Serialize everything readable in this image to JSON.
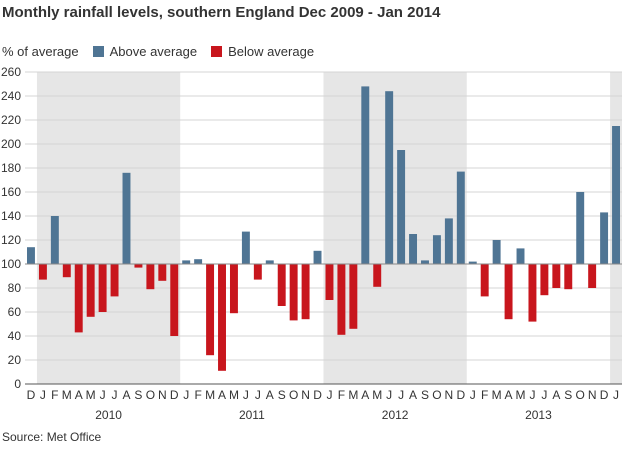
{
  "title": "Monthly rainfall levels, southern England Dec 2009 - Jan 2014",
  "legend": {
    "unit_label": "% of average",
    "above_label": "Above average",
    "below_label": "Below average"
  },
  "source": "Source: Met Office",
  "colors": {
    "above": "#4f7594",
    "below": "#c8161d",
    "band": "#e6e6e6",
    "grid": "#d4d4d4"
  },
  "chart_data": {
    "type": "bar",
    "ylabel": "% of average",
    "ylim": [
      0,
      260
    ],
    "yticks": [
      0,
      20,
      40,
      60,
      80,
      100,
      120,
      140,
      160,
      180,
      200,
      220,
      240,
      260
    ],
    "baseline": 100,
    "categories": [
      "D",
      "J",
      "F",
      "M",
      "A",
      "M",
      "J",
      "J",
      "A",
      "S",
      "O",
      "N",
      "D",
      "J",
      "F",
      "M",
      "A",
      "M",
      "J",
      "J",
      "A",
      "S",
      "O",
      "N",
      "D",
      "J",
      "F",
      "M",
      "A",
      "M",
      "J",
      "J",
      "A",
      "S",
      "O",
      "N",
      "D",
      "J",
      "F",
      "M",
      "A",
      "M",
      "J",
      "J",
      "A",
      "S",
      "O",
      "N",
      "D",
      "J"
    ],
    "values": [
      114,
      87,
      140,
      89,
      43,
      56,
      60,
      73,
      176,
      97,
      79,
      86,
      40,
      103,
      104,
      24,
      11,
      59,
      127,
      87,
      103,
      65,
      53,
      54,
      111,
      70,
      41,
      46,
      248,
      81,
      244,
      195,
      125,
      103,
      124,
      138,
      177,
      102,
      73,
      120,
      54,
      113,
      52,
      74,
      80,
      79,
      160,
      80,
      143,
      215
    ],
    "years": [
      "2010",
      "2011",
      "2012",
      "2013"
    ],
    "shaded_bands": [
      "2010",
      "2012",
      "Jan 2014"
    ]
  }
}
